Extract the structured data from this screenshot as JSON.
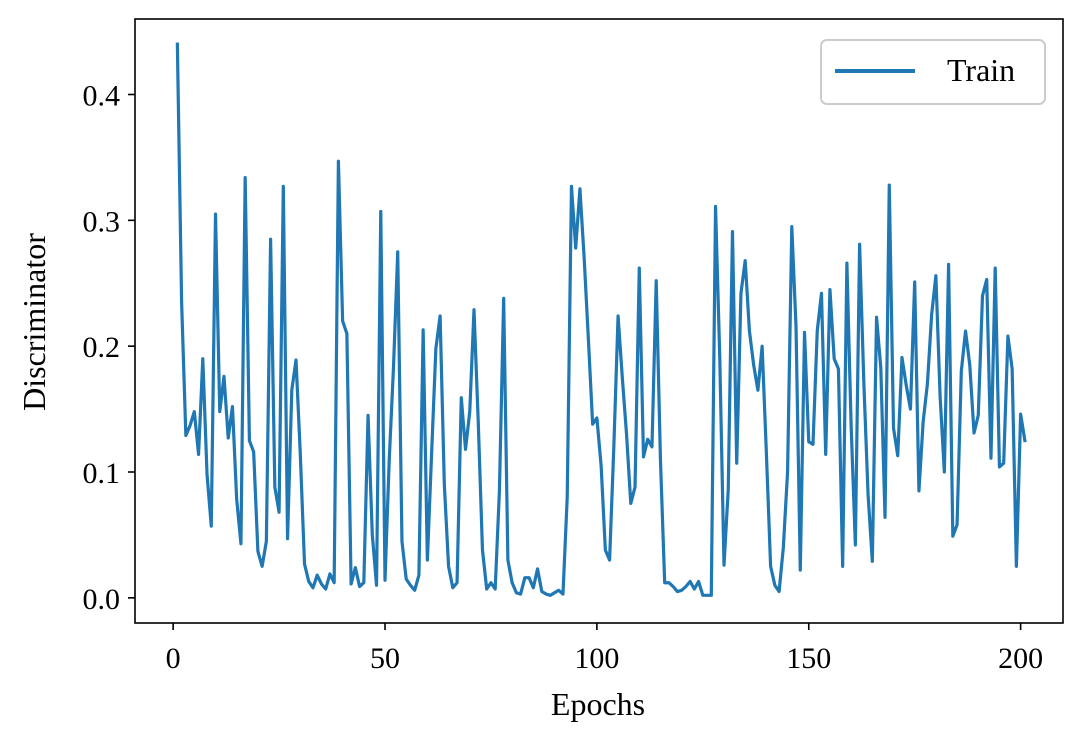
{
  "chart_data": {
    "type": "line",
    "xlabel": "Epochs",
    "ylabel": "Discriminator",
    "xlim": [
      -9,
      210
    ],
    "ylim": [
      -0.02,
      0.46
    ],
    "xticks": [
      0,
      50,
      100,
      150,
      200
    ],
    "xtick_labels": [
      "0",
      "50",
      "100",
      "150",
      "200"
    ],
    "yticks": [
      0.0,
      0.1,
      0.2,
      0.3,
      0.4
    ],
    "ytick_labels": [
      "0.0",
      "0.1",
      "0.2",
      "0.3",
      "0.4"
    ],
    "grid": false,
    "legend_position": "top-right",
    "series": [
      {
        "name": "Train",
        "color": "#1f77b4",
        "x": [
          1,
          2,
          3,
          4,
          5,
          6,
          7,
          8,
          9,
          10,
          11,
          12,
          13,
          14,
          15,
          16,
          17,
          18,
          19,
          20,
          21,
          22,
          23,
          24,
          25,
          26,
          27,
          28,
          29,
          30,
          31,
          32,
          33,
          34,
          35,
          36,
          37,
          38,
          39,
          40,
          41,
          42,
          43,
          44,
          45,
          46,
          47,
          48,
          49,
          50,
          51,
          52,
          53,
          54,
          55,
          56,
          57,
          58,
          59,
          60,
          61,
          62,
          63,
          64,
          65,
          66,
          67,
          68,
          69,
          70,
          71,
          72,
          73,
          74,
          75,
          76,
          77,
          78,
          79,
          80,
          81,
          82,
          83,
          84,
          85,
          86,
          87,
          88,
          89,
          90,
          91,
          92,
          93,
          94,
          95,
          96,
          97,
          98,
          99,
          100,
          101,
          102,
          103,
          104,
          105,
          106,
          107,
          108,
          109,
          110,
          111,
          112,
          113,
          114,
          115,
          116,
          117,
          118,
          119,
          120,
          121,
          122,
          123,
          124,
          125,
          126,
          127,
          128,
          129,
          130,
          131,
          132,
          133,
          134,
          135,
          136,
          137,
          138,
          139,
          140,
          141,
          142,
          143,
          144,
          145,
          146,
          147,
          148,
          149,
          150,
          151,
          152,
          153,
          154,
          155,
          156,
          157,
          158,
          159,
          160,
          161,
          162,
          163,
          164,
          165,
          166,
          167,
          168,
          169,
          170,
          171,
          172,
          173,
          174,
          175,
          176,
          177,
          178,
          179,
          180,
          181,
          182,
          183,
          184,
          185,
          186,
          187,
          188,
          189,
          190,
          191,
          192,
          193,
          194,
          195,
          196,
          197,
          198,
          199,
          200,
          201
        ],
        "y": [
          0.44,
          0.235,
          0.129,
          0.137,
          0.148,
          0.114,
          0.19,
          0.098,
          0.057,
          0.305,
          0.148,
          0.176,
          0.127,
          0.152,
          0.078,
          0.043,
          0.334,
          0.125,
          0.116,
          0.037,
          0.025,
          0.045,
          0.285,
          0.088,
          0.068,
          0.327,
          0.047,
          0.165,
          0.189,
          0.115,
          0.027,
          0.013,
          0.008,
          0.018,
          0.011,
          0.007,
          0.019,
          0.012,
          0.347,
          0.22,
          0.21,
          0.011,
          0.024,
          0.009,
          0.012,
          0.145,
          0.05,
          0.01,
          0.307,
          0.014,
          0.11,
          0.183,
          0.275,
          0.045,
          0.015,
          0.01,
          0.006,
          0.018,
          0.213,
          0.03,
          0.115,
          0.198,
          0.224,
          0.09,
          0.025,
          0.008,
          0.012,
          0.159,
          0.118,
          0.148,
          0.229,
          0.14,
          0.038,
          0.007,
          0.012,
          0.007,
          0.085,
          0.238,
          0.03,
          0.012,
          0.004,
          0.003,
          0.016,
          0.016,
          0.008,
          0.023,
          0.005,
          0.003,
          0.002,
          0.004,
          0.006,
          0.003,
          0.08,
          0.327,
          0.278,
          0.325,
          0.27,
          0.205,
          0.138,
          0.143,
          0.105,
          0.038,
          0.03,
          0.12,
          0.224,
          0.175,
          0.13,
          0.075,
          0.088,
          0.262,
          0.112,
          0.126,
          0.12,
          0.252,
          0.11,
          0.012,
          0.012,
          0.009,
          0.005,
          0.006,
          0.009,
          0.013,
          0.007,
          0.013,
          0.002,
          0.002,
          0.002,
          0.311,
          0.191,
          0.026,
          0.086,
          0.291,
          0.107,
          0.242,
          0.268,
          0.212,
          0.185,
          0.165,
          0.2,
          0.115,
          0.025,
          0.01,
          0.005,
          0.04,
          0.1,
          0.295,
          0.215,
          0.022,
          0.211,
          0.124,
          0.122,
          0.212,
          0.242,
          0.114,
          0.245,
          0.19,
          0.182,
          0.025,
          0.266,
          0.137,
          0.042,
          0.281,
          0.171,
          0.082,
          0.029,
          0.223,
          0.183,
          0.064,
          0.328,
          0.135,
          0.113,
          0.191,
          0.169,
          0.15,
          0.251,
          0.085,
          0.14,
          0.17,
          0.225,
          0.256,
          0.16,
          0.1,
          0.265,
          0.049,
          0.058,
          0.18,
          0.212,
          0.185,
          0.131,
          0.145,
          0.24,
          0.253,
          0.111,
          0.262,
          0.104,
          0.107,
          0.208,
          0.182,
          0.025,
          0.146,
          0.125
        ]
      }
    ]
  }
}
